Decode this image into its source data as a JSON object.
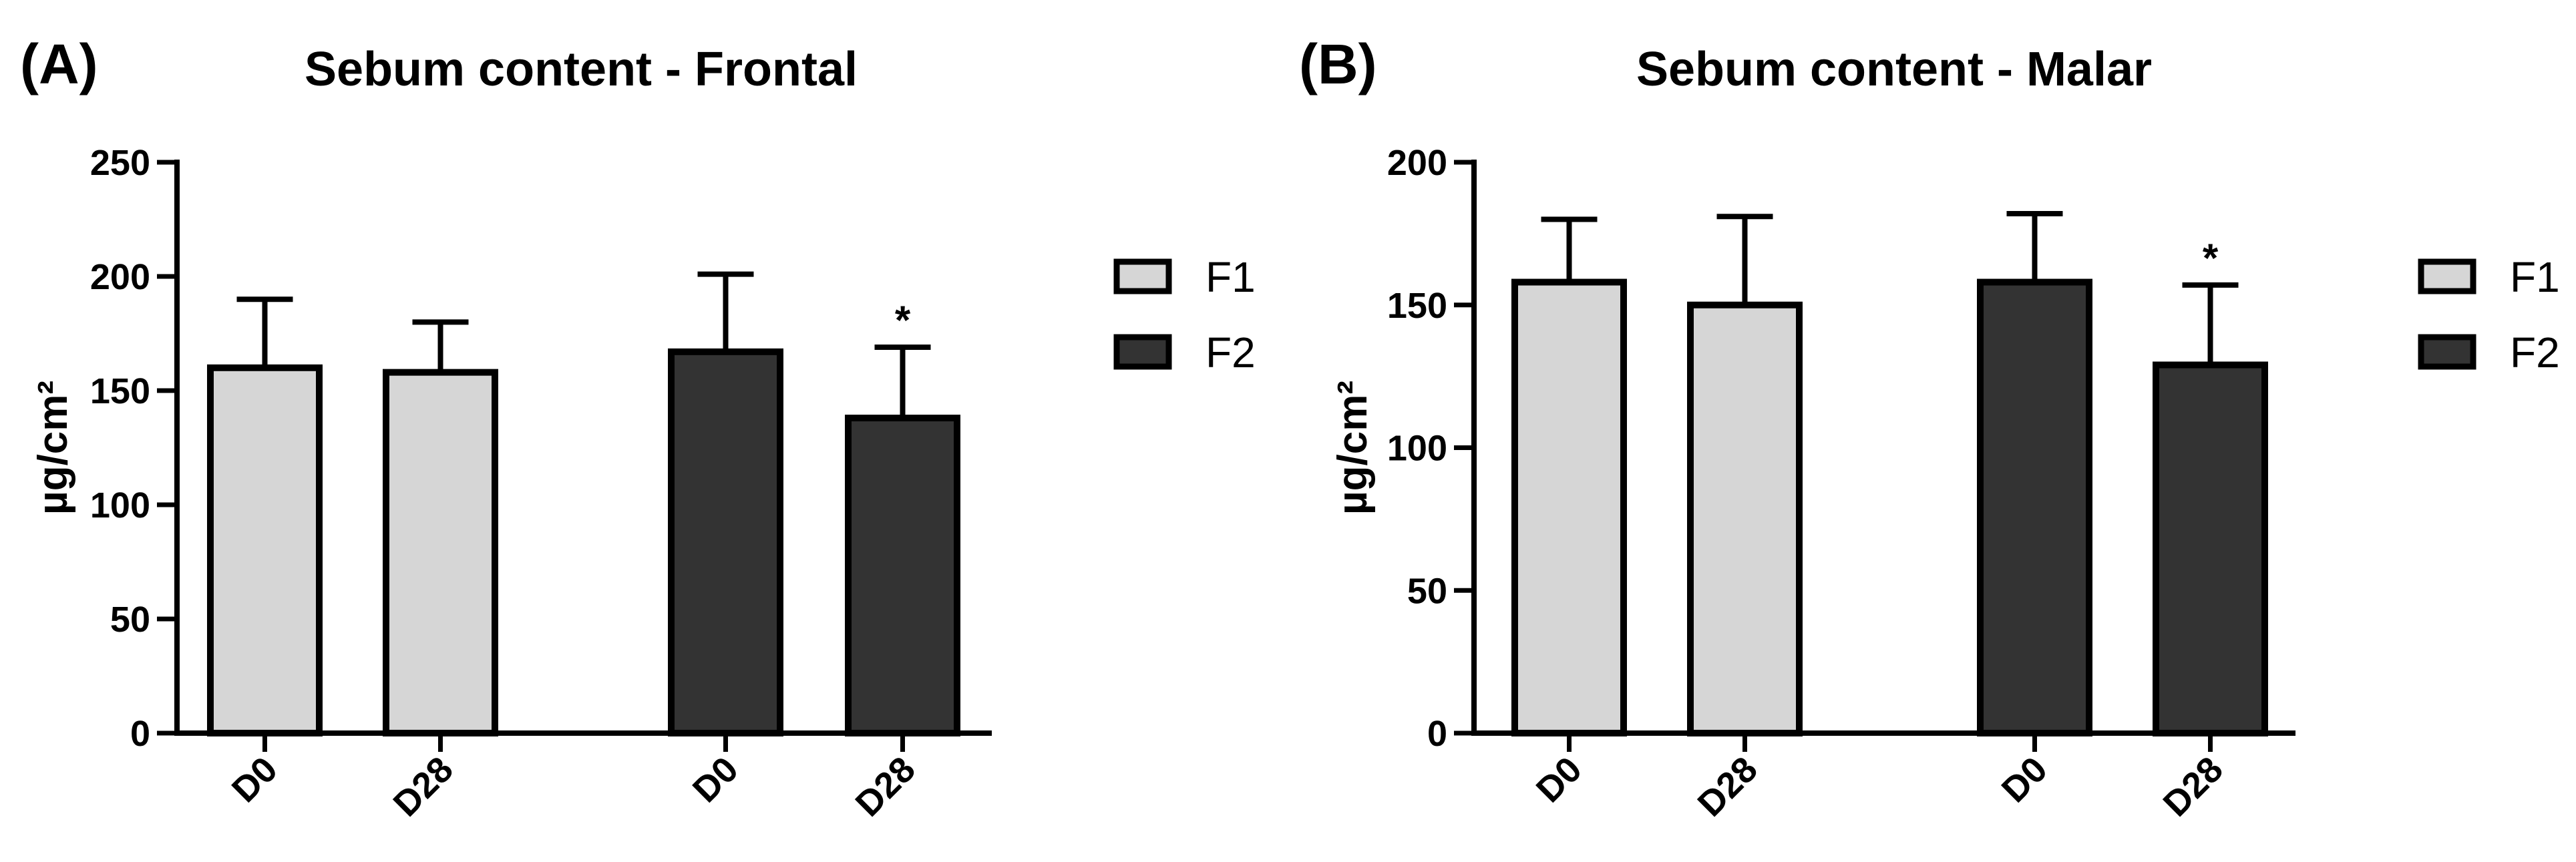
{
  "chart_data": [
    {
      "type": "bar",
      "panel_label": "(A)",
      "title": "Sebum content - Frontal",
      "xlabel": "",
      "ylabel": "µg/cm²",
      "ylim": [
        0,
        250
      ],
      "yticks": [
        0,
        50,
        100,
        150,
        200,
        250
      ],
      "categories": [
        "D0",
        "D28",
        "D0",
        "D28"
      ],
      "bars": [
        {
          "group": "F1",
          "category": "D0",
          "value": 160,
          "error": 30,
          "annotation": ""
        },
        {
          "group": "F1",
          "category": "D28",
          "value": 158,
          "error": 22,
          "annotation": ""
        },
        {
          "group": "F2",
          "category": "D0",
          "value": 167,
          "error": 34,
          "annotation": ""
        },
        {
          "group": "F2",
          "category": "D28",
          "value": 138,
          "error": 31,
          "annotation": "*"
        }
      ],
      "legend": [
        {
          "label": "F1",
          "color": "#d6d6d6"
        },
        {
          "label": "F2",
          "color": "#333333"
        }
      ],
      "legend_position": "right"
    },
    {
      "type": "bar",
      "panel_label": "(B)",
      "title": "Sebum content - Malar",
      "xlabel": "",
      "ylabel": "µg/cm²",
      "ylim": [
        0,
        200
      ],
      "yticks": [
        0,
        50,
        100,
        150,
        200
      ],
      "categories": [
        "D0",
        "D28",
        "D0",
        "D28"
      ],
      "bars": [
        {
          "group": "F1",
          "category": "D0",
          "value": 158,
          "error": 22,
          "annotation": ""
        },
        {
          "group": "F1",
          "category": "D28",
          "value": 150,
          "error": 31,
          "annotation": ""
        },
        {
          "group": "F2",
          "category": "D0",
          "value": 158,
          "error": 24,
          "annotation": ""
        },
        {
          "group": "F2",
          "category": "D28",
          "value": 129,
          "error": 28,
          "annotation": "*"
        }
      ],
      "legend": [
        {
          "label": "F1",
          "color": "#d6d6d6"
        },
        {
          "label": "F2",
          "color": "#333333"
        }
      ],
      "legend_position": "right"
    }
  ]
}
